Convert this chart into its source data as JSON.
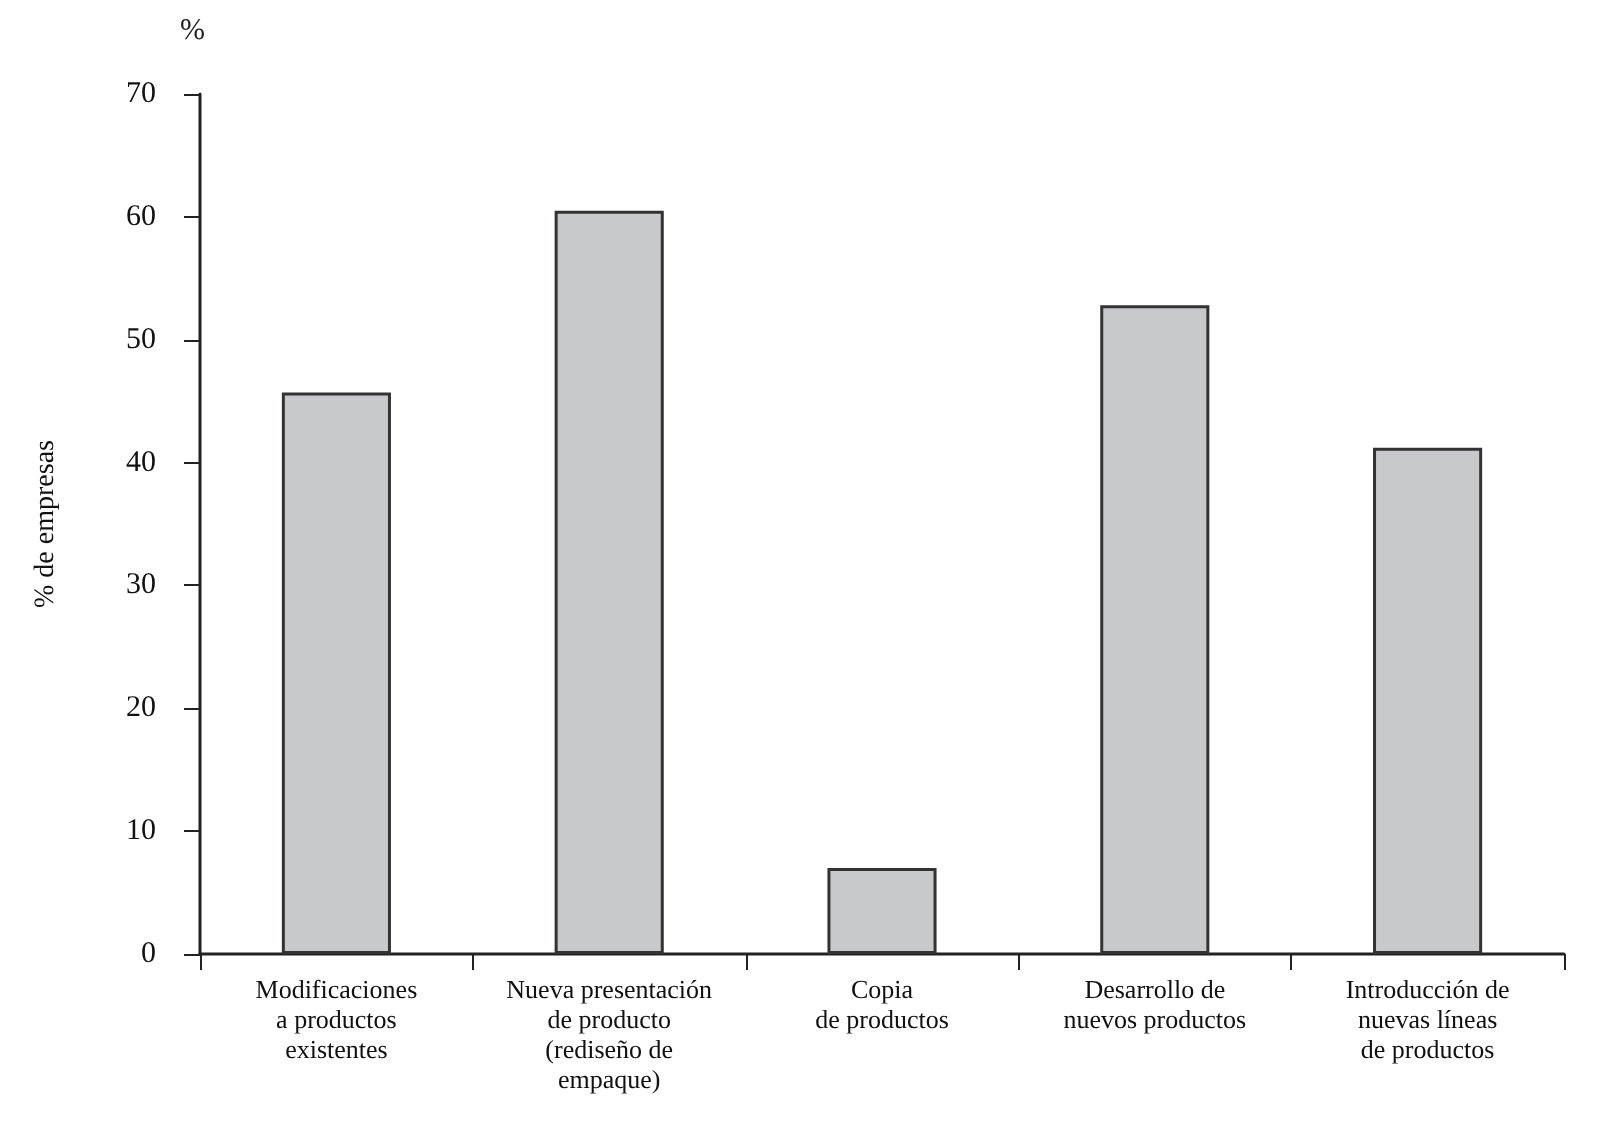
{
  "chart_data": {
    "type": "bar",
    "ylabel": "% de empresas",
    "annotations": [
      "%"
    ],
    "categories": [
      "Modificaciones\na productos\nexistentes",
      "Nueva presentación\nde producto\n(rediseño de\nempaque)",
      "Copia\nde productos",
      "Desarrollo de\nnuevos productos",
      "Introducción de\nnuevas líneas\nde productos"
    ],
    "values": [
      45.7,
      60.5,
      7.0,
      52.8,
      41.2
    ],
    "color": "#c8c9cb",
    "ylim": [
      0,
      70
    ],
    "yticks": [
      0,
      10,
      20,
      30,
      40,
      50,
      60,
      70
    ],
    "grid": false
  }
}
